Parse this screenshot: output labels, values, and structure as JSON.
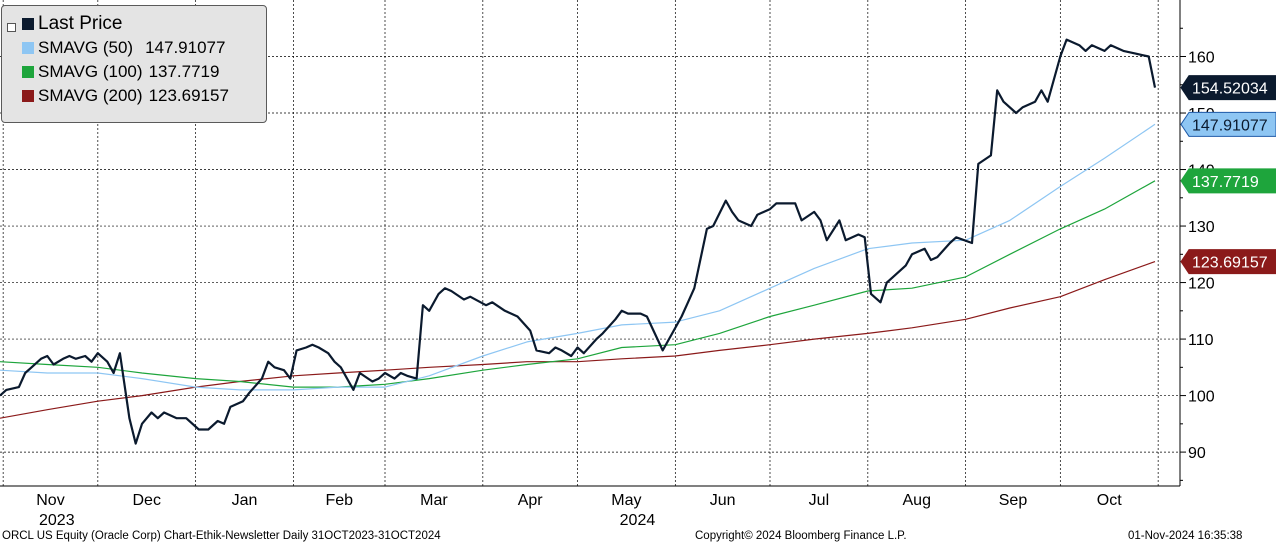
{
  "legend": {
    "items": [
      {
        "name": "Last Price",
        "value": "",
        "color": "#0b1a2e"
      },
      {
        "name": "SMAVG (50)",
        "value": "147.91077",
        "color": "#8ec6f3"
      },
      {
        "name": "SMAVG (100)",
        "value": "137.7719",
        "color": "#1ea53c"
      },
      {
        "name": "SMAVG (200)",
        "value": "123.69157",
        "color": "#8b1a1a"
      }
    ]
  },
  "footer": {
    "left": "ORCL US Equity (Oracle Corp) Chart-Ethik-Newsletter  Daily 31OCT2023-31OCT2024",
    "center": "Copyright© 2024 Bloomberg Finance L.P.",
    "right": "01-Nov-2024 16:35:38"
  },
  "chart_data": {
    "type": "line",
    "yticks": [
      90,
      100,
      110,
      120,
      130,
      140,
      150,
      160
    ],
    "ylim": [
      84,
      170
    ],
    "x_months": [
      "Nov",
      "Dec",
      "Jan",
      "Feb",
      "Mar",
      "Apr",
      "May",
      "Jun",
      "Jul",
      "Aug",
      "Sep",
      "Oct"
    ],
    "x_years": [
      "2023",
      "2024"
    ],
    "x_start": "2023-10-31",
    "x_end": "2024-10-31",
    "series": [
      {
        "name": "Last Price",
        "color": "#0b1a2e",
        "last_label": "154.52034",
        "points": [
          [
            "2023-10-31",
            100
          ],
          [
            "2023-11-02",
            101
          ],
          [
            "2023-11-06",
            101.5
          ],
          [
            "2023-11-08",
            104
          ],
          [
            "2023-11-10",
            105
          ],
          [
            "2023-11-13",
            106.5
          ],
          [
            "2023-11-15",
            107
          ],
          [
            "2023-11-17",
            105.5
          ],
          [
            "2023-11-20",
            106.5
          ],
          [
            "2023-11-22",
            107
          ],
          [
            "2023-11-24",
            106.5
          ],
          [
            "2023-11-27",
            107
          ],
          [
            "2023-11-29",
            106
          ],
          [
            "2023-12-01",
            107.5
          ],
          [
            "2023-12-04",
            106
          ],
          [
            "2023-12-06",
            104
          ],
          [
            "2023-12-08",
            107.5
          ],
          [
            "2023-12-11",
            96
          ],
          [
            "2023-12-13",
            91.5
          ],
          [
            "2023-12-15",
            95
          ],
          [
            "2023-12-18",
            97
          ],
          [
            "2023-12-20",
            96
          ],
          [
            "2023-12-22",
            97
          ],
          [
            "2023-12-26",
            96
          ],
          [
            "2023-12-29",
            96
          ],
          [
            "2024-01-02",
            94
          ],
          [
            "2024-01-05",
            94
          ],
          [
            "2024-01-08",
            95.5
          ],
          [
            "2024-01-10",
            95
          ],
          [
            "2024-01-12",
            98
          ],
          [
            "2024-01-16",
            99
          ],
          [
            "2024-01-18",
            100.5
          ],
          [
            "2024-01-22",
            103
          ],
          [
            "2024-01-24",
            106
          ],
          [
            "2024-01-26",
            105
          ],
          [
            "2024-01-29",
            104.5
          ],
          [
            "2024-01-31",
            103
          ],
          [
            "2024-02-02",
            108
          ],
          [
            "2024-02-05",
            108.5
          ],
          [
            "2024-02-07",
            109
          ],
          [
            "2024-02-09",
            108.5
          ],
          [
            "2024-02-12",
            107.5
          ],
          [
            "2024-02-14",
            106
          ],
          [
            "2024-02-16",
            105
          ],
          [
            "2024-02-20",
            101
          ],
          [
            "2024-02-22",
            104
          ],
          [
            "2024-02-26",
            102.5
          ],
          [
            "2024-02-28",
            103
          ],
          [
            "2024-03-01",
            104
          ],
          [
            "2024-03-04",
            103
          ],
          [
            "2024-03-06",
            104
          ],
          [
            "2024-03-08",
            103.5
          ],
          [
            "2024-03-11",
            103
          ],
          [
            "2024-03-13",
            116
          ],
          [
            "2024-03-15",
            115
          ],
          [
            "2024-03-18",
            118
          ],
          [
            "2024-03-20",
            119
          ],
          [
            "2024-03-22",
            118.5
          ],
          [
            "2024-03-26",
            117
          ],
          [
            "2024-03-28",
            117.5
          ],
          [
            "2024-04-02",
            116
          ],
          [
            "2024-04-04",
            116.5
          ],
          [
            "2024-04-08",
            115
          ],
          [
            "2024-04-10",
            114.5
          ],
          [
            "2024-04-12",
            114
          ],
          [
            "2024-04-16",
            111.5
          ],
          [
            "2024-04-18",
            108
          ],
          [
            "2024-04-22",
            107.5
          ],
          [
            "2024-04-24",
            108.5
          ],
          [
            "2024-04-26",
            108
          ],
          [
            "2024-04-29",
            107
          ],
          [
            "2024-05-01",
            108.5
          ],
          [
            "2024-05-03",
            107.5
          ],
          [
            "2024-05-07",
            110
          ],
          [
            "2024-05-09",
            111
          ],
          [
            "2024-05-13",
            113.5
          ],
          [
            "2024-05-15",
            115
          ],
          [
            "2024-05-17",
            114.5
          ],
          [
            "2024-05-21",
            114.5
          ],
          [
            "2024-05-23",
            114
          ],
          [
            "2024-05-28",
            108
          ],
          [
            "2024-05-30",
            110
          ],
          [
            "2024-06-03",
            114
          ],
          [
            "2024-06-05",
            116.5
          ],
          [
            "2024-06-07",
            119
          ],
          [
            "2024-06-11",
            129.5
          ],
          [
            "2024-06-13",
            130
          ],
          [
            "2024-06-17",
            134.5
          ],
          [
            "2024-06-19",
            132.5
          ],
          [
            "2024-06-21",
            131
          ],
          [
            "2024-06-25",
            130
          ],
          [
            "2024-06-27",
            132
          ],
          [
            "2024-07-01",
            133
          ],
          [
            "2024-07-03",
            134
          ],
          [
            "2024-07-05",
            134
          ],
          [
            "2024-07-09",
            134
          ],
          [
            "2024-07-11",
            131
          ],
          [
            "2024-07-15",
            132.5
          ],
          [
            "2024-07-17",
            131
          ],
          [
            "2024-07-19",
            127.5
          ],
          [
            "2024-07-23",
            131
          ],
          [
            "2024-07-25",
            127.5
          ],
          [
            "2024-07-29",
            128.5
          ],
          [
            "2024-07-31",
            128
          ],
          [
            "2024-08-02",
            118
          ],
          [
            "2024-08-05",
            116.5
          ],
          [
            "2024-08-07",
            120
          ],
          [
            "2024-08-09",
            121
          ],
          [
            "2024-08-13",
            123
          ],
          [
            "2024-08-15",
            125
          ],
          [
            "2024-08-19",
            126
          ],
          [
            "2024-08-21",
            124
          ],
          [
            "2024-08-23",
            124.5
          ],
          [
            "2024-08-27",
            127
          ],
          [
            "2024-08-29",
            128
          ],
          [
            "2024-09-03",
            127
          ],
          [
            "2024-09-05",
            141
          ],
          [
            "2024-09-09",
            142.5
          ],
          [
            "2024-09-11",
            154
          ],
          [
            "2024-09-13",
            152
          ],
          [
            "2024-09-17",
            150
          ],
          [
            "2024-09-19",
            151
          ],
          [
            "2024-09-23",
            152
          ],
          [
            "2024-09-25",
            154
          ],
          [
            "2024-09-27",
            152
          ],
          [
            "2024-10-01",
            160
          ],
          [
            "2024-10-03",
            163
          ],
          [
            "2024-10-07",
            162
          ],
          [
            "2024-10-09",
            161
          ],
          [
            "2024-10-11",
            162
          ],
          [
            "2024-10-15",
            161
          ],
          [
            "2024-10-17",
            162
          ],
          [
            "2024-10-21",
            161
          ],
          [
            "2024-10-25",
            160.5
          ],
          [
            "2024-10-29",
            160
          ],
          [
            "2024-10-31",
            154.5
          ]
        ]
      },
      {
        "name": "SMAVG (50)",
        "color": "#8ec6f3",
        "last_label": "147.91077",
        "points": [
          [
            "2023-10-31",
            104.5
          ],
          [
            "2023-11-15",
            104
          ],
          [
            "2023-12-01",
            104
          ],
          [
            "2023-12-15",
            103
          ],
          [
            "2024-01-01",
            101.5
          ],
          [
            "2024-01-15",
            101
          ],
          [
            "2024-02-01",
            101
          ],
          [
            "2024-02-15",
            101.5
          ],
          [
            "2024-03-01",
            101.5
          ],
          [
            "2024-03-15",
            103.5
          ],
          [
            "2024-04-01",
            107
          ],
          [
            "2024-04-15",
            109.5
          ],
          [
            "2024-05-01",
            111
          ],
          [
            "2024-05-15",
            112.5
          ],
          [
            "2024-06-01",
            113
          ],
          [
            "2024-06-15",
            115
          ],
          [
            "2024-07-01",
            119
          ],
          [
            "2024-07-15",
            122.5
          ],
          [
            "2024-08-01",
            126
          ],
          [
            "2024-08-15",
            127
          ],
          [
            "2024-09-01",
            127.5
          ],
          [
            "2024-09-15",
            131
          ],
          [
            "2024-10-01",
            137
          ],
          [
            "2024-10-15",
            142
          ],
          [
            "2024-10-31",
            148
          ]
        ]
      },
      {
        "name": "SMAVG (100)",
        "color": "#1ea53c",
        "last_label": "137.7719",
        "points": [
          [
            "2023-10-31",
            106
          ],
          [
            "2023-11-15",
            105.5
          ],
          [
            "2023-12-01",
            105
          ],
          [
            "2023-12-15",
            104
          ],
          [
            "2024-01-01",
            103
          ],
          [
            "2024-01-15",
            102.5
          ],
          [
            "2024-02-01",
            101.5
          ],
          [
            "2024-02-15",
            101.5
          ],
          [
            "2024-03-01",
            102
          ],
          [
            "2024-03-15",
            103
          ],
          [
            "2024-04-01",
            104.5
          ],
          [
            "2024-04-15",
            105.5
          ],
          [
            "2024-05-01",
            106.5
          ],
          [
            "2024-05-15",
            108.5
          ],
          [
            "2024-06-01",
            109
          ],
          [
            "2024-06-15",
            111
          ],
          [
            "2024-07-01",
            114
          ],
          [
            "2024-07-15",
            116
          ],
          [
            "2024-08-01",
            118.5
          ],
          [
            "2024-08-15",
            119
          ],
          [
            "2024-09-01",
            121
          ],
          [
            "2024-09-15",
            125
          ],
          [
            "2024-10-01",
            129.5
          ],
          [
            "2024-10-15",
            133
          ],
          [
            "2024-10-31",
            138
          ]
        ]
      },
      {
        "name": "SMAVG (200)",
        "color": "#8b1a1a",
        "last_label": "123.69157",
        "points": [
          [
            "2023-10-31",
            96
          ],
          [
            "2023-11-15",
            97.5
          ],
          [
            "2023-12-01",
            99
          ],
          [
            "2023-12-15",
            100
          ],
          [
            "2024-01-01",
            101.5
          ],
          [
            "2024-01-15",
            102.5
          ],
          [
            "2024-02-01",
            103.5
          ],
          [
            "2024-02-15",
            104
          ],
          [
            "2024-03-01",
            104.5
          ],
          [
            "2024-03-15",
            105
          ],
          [
            "2024-04-01",
            105.5
          ],
          [
            "2024-04-15",
            106
          ],
          [
            "2024-05-01",
            106
          ],
          [
            "2024-05-15",
            106.5
          ],
          [
            "2024-06-01",
            107
          ],
          [
            "2024-06-15",
            108
          ],
          [
            "2024-07-01",
            109
          ],
          [
            "2024-07-15",
            110
          ],
          [
            "2024-08-01",
            111
          ],
          [
            "2024-08-15",
            112
          ],
          [
            "2024-09-01",
            113.5
          ],
          [
            "2024-09-15",
            115.5
          ],
          [
            "2024-10-01",
            117.5
          ],
          [
            "2024-10-15",
            120.5
          ],
          [
            "2024-10-31",
            123.7
          ]
        ]
      }
    ]
  }
}
